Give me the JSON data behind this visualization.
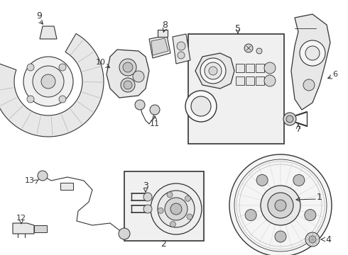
{
  "bg_color": "#ffffff",
  "lc": "#333333",
  "gray1": "#e8e8e8",
  "gray2": "#d5d5d5",
  "gray3": "#c0c0c0",
  "dot_bg": "#d8d8d8",
  "box_bg": "#ebebeb",
  "fig_w": 4.9,
  "fig_h": 3.6,
  "dpi": 100
}
